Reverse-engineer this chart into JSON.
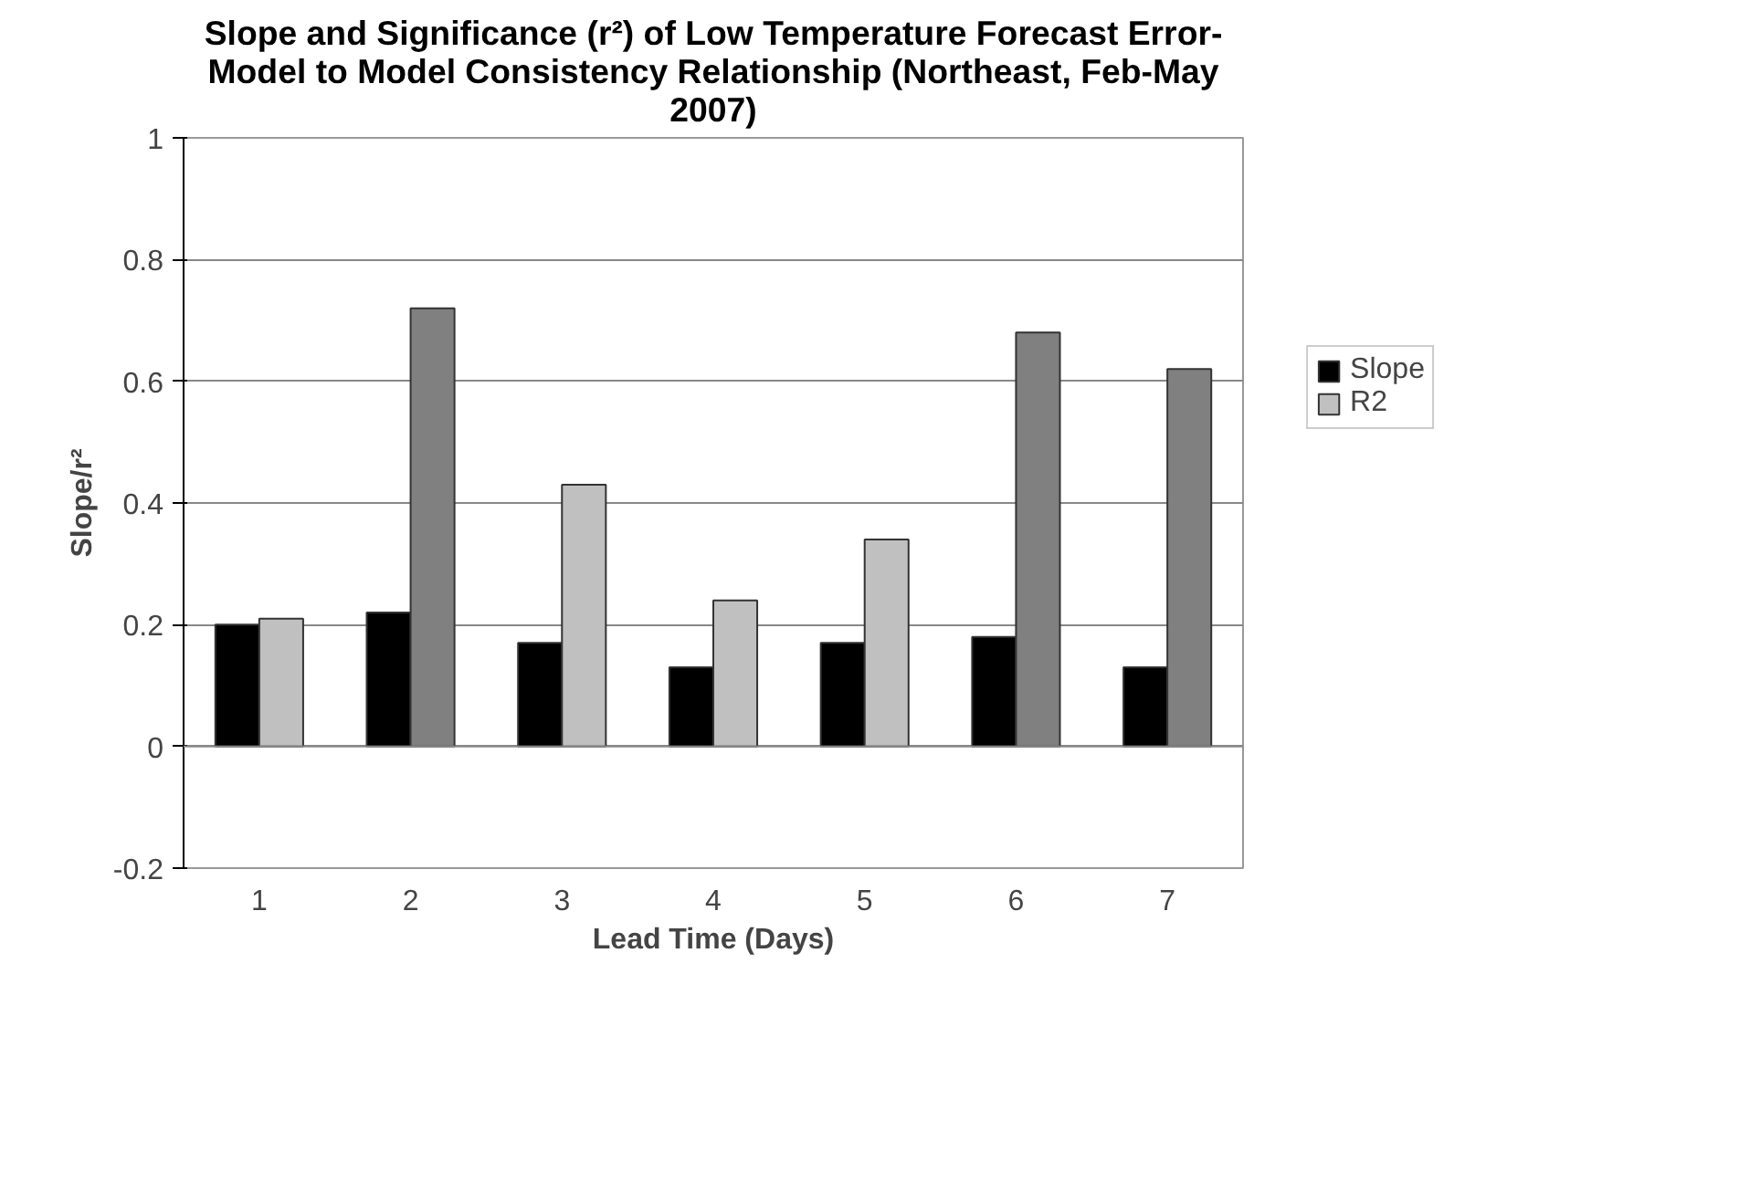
{
  "chart_data": {
    "type": "bar",
    "title": "Slope and Significance (r²) of Low Temperature Forecast Error-\nModel to Model Consistency Relationship (Northeast, Feb-May\n2007)",
    "xlabel": "Lead Time (Days)",
    "ylabel": "Slope/r²",
    "categories": [
      "1",
      "2",
      "3",
      "4",
      "5",
      "6",
      "7"
    ],
    "series": [
      {
        "name": "Slope",
        "color": "#000000",
        "values": [
          0.2,
          0.22,
          0.17,
          0.13,
          0.17,
          0.18,
          0.13
        ]
      },
      {
        "name": "R2",
        "color": "#c0c0c0",
        "colors": [
          "#c0c0c0",
          "#808080",
          "#c0c0c0",
          "#c0c0c0",
          "#c0c0c0",
          "#808080",
          "#808080"
        ],
        "values": [
          0.21,
          0.72,
          0.43,
          0.24,
          0.34,
          0.68,
          0.62
        ]
      }
    ],
    "ylim": [
      -0.2,
      1
    ],
    "yticks": [
      -0.2,
      0,
      0.2,
      0.4,
      0.6,
      0.8,
      1
    ],
    "grid": "y",
    "legend": "right"
  }
}
